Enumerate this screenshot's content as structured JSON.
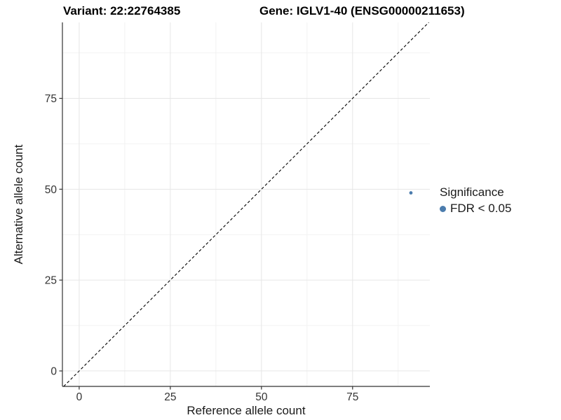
{
  "figure": {
    "title_variant": "Variant: 22:22764385",
    "title_gene": "Gene: IGLV1-40 (ENSG00000211653)"
  },
  "chart_data": {
    "type": "scatter",
    "title": "Variant: 22:22764385 | Gene: IGLV1-40 (ENSG00000211653)",
    "xlabel": "Reference allele count",
    "ylabel": "Alternative allele count",
    "xlim": [
      -4.6,
      96.2
    ],
    "ylim": [
      -4.25,
      95.9
    ],
    "x_ticks": [
      0,
      25,
      50,
      75
    ],
    "y_ticks": [
      0,
      25,
      50,
      75
    ],
    "x_minor_ticks": [
      12.5,
      37.5,
      62.5,
      87.5
    ],
    "y_minor_ticks": [
      12.5,
      37.5,
      62.5,
      87.5
    ],
    "grid": true,
    "legend_position": "right",
    "identity_line": {
      "type": "abline",
      "slope": 1,
      "intercept": 0,
      "style": "dashed"
    },
    "series": [
      {
        "name": "FDR < 0.05",
        "points": [
          {
            "x": 91,
            "y": 49
          }
        ]
      }
    ],
    "point_radius_px": 2.4,
    "legend": {
      "title": "Significance",
      "entries": [
        {
          "label": "FDR < 0.05",
          "color": "#4b7cad"
        }
      ]
    }
  },
  "colors": {
    "point": "#4b7cad",
    "grid_major": "#e6e6e6",
    "grid_minor": "#f2f2f2",
    "axis_line": "#333333",
    "tick_mark": "#333333",
    "identity_line": "#000000",
    "tick_label": "#333333"
  }
}
